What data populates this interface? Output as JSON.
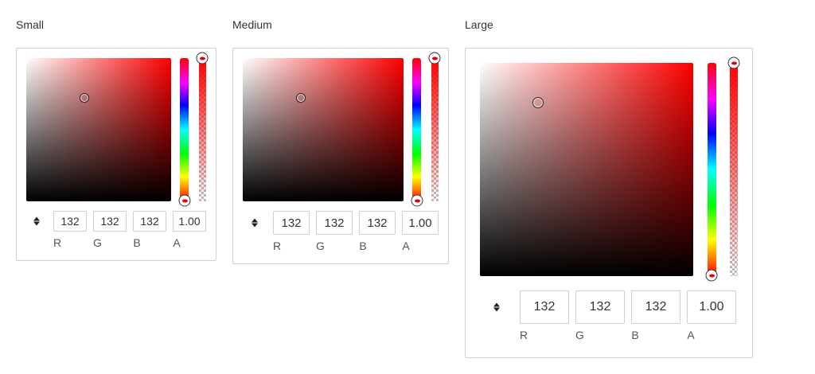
{
  "pickers": [
    {
      "title": "Small",
      "color": {
        "r": "132",
        "g": "132",
        "b": "132",
        "a": "1.00"
      },
      "channel_labels": [
        "R",
        "G",
        "B",
        "A"
      ]
    },
    {
      "title": "Medium",
      "color": {
        "r": "132",
        "g": "132",
        "b": "132",
        "a": "1.00"
      },
      "channel_labels": [
        "R",
        "G",
        "B",
        "A"
      ]
    },
    {
      "title": "Large",
      "color": {
        "r": "132",
        "g": "132",
        "b": "132",
        "a": "1.00"
      },
      "channel_labels": [
        "R",
        "G",
        "B",
        "A"
      ]
    }
  ],
  "hue_color": "#ff0000",
  "icons": {
    "mode_toggle": "up-down-arrows-icon"
  }
}
